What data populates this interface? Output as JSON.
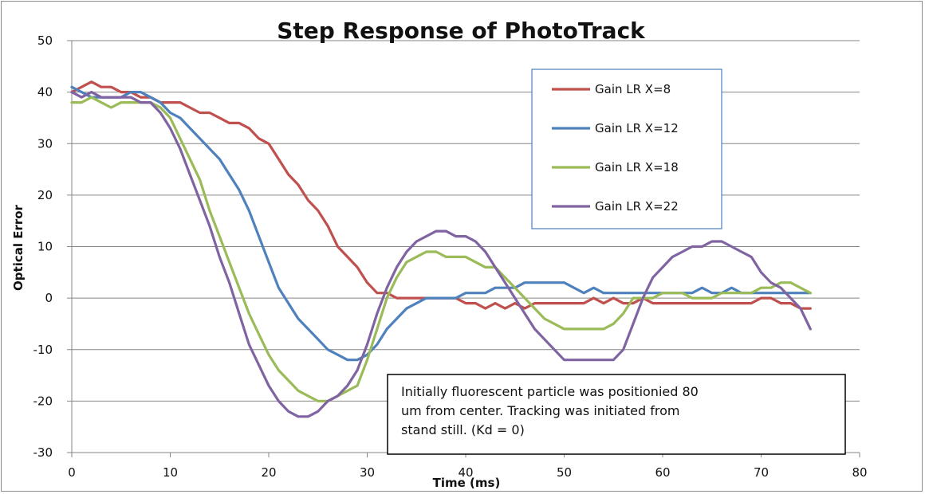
{
  "chart_data": {
    "type": "line",
    "title": "Step Response of PhotoTrack",
    "xlabel": "Time (ms)",
    "ylabel": "Optical Error",
    "xlim": [
      0,
      80
    ],
    "ylim": [
      -30,
      50
    ],
    "xticks": [
      "0",
      "10",
      "20",
      "30",
      "40",
      "50",
      "60",
      "70",
      "80"
    ],
    "yticks": [
      "50",
      "40",
      "30",
      "20",
      "10",
      "0",
      "-10",
      "-20",
      "-30"
    ],
    "grid": true,
    "legend_position": "top-right",
    "annotation": [
      "Initially fluorescent particle was positionied 80",
      "um from center.  Tracking was initiated from",
      "stand still.  (Kd = 0)"
    ],
    "series": [
      {
        "name": "Gain LR X=8",
        "color": "#c0504d",
        "x": [
          0,
          1,
          2,
          3,
          4,
          5,
          6,
          7,
          8,
          9,
          10,
          11,
          12,
          13,
          14,
          15,
          16,
          17,
          18,
          19,
          20,
          21,
          22,
          23,
          24,
          25,
          26,
          27,
          28,
          29,
          30,
          31,
          32,
          33,
          34,
          35,
          36,
          37,
          38,
          39,
          40,
          41,
          42,
          43,
          44,
          45,
          46,
          47,
          48,
          49,
          50,
          51,
          52,
          53,
          54,
          55,
          56,
          57,
          58,
          59,
          60,
          61,
          62,
          63,
          64,
          65,
          66,
          67,
          68,
          69,
          70,
          71,
          72,
          73,
          74,
          75
        ],
        "values": [
          40,
          41,
          42,
          41,
          41,
          40,
          40,
          39,
          39,
          38,
          38,
          38,
          37,
          36,
          36,
          35,
          34,
          34,
          33,
          31,
          30,
          27,
          24,
          22,
          19,
          17,
          14,
          10,
          8,
          6,
          3,
          1,
          1,
          0,
          0,
          0,
          0,
          0,
          0,
          0,
          -1,
          -1,
          -2,
          -1,
          -2,
          -1,
          -2,
          -1,
          -1,
          -1,
          -1,
          -1,
          -1,
          0,
          -1,
          0,
          -1,
          -1,
          0,
          -1,
          -1,
          -1,
          -1,
          -1,
          -1,
          -1,
          -1,
          -1,
          -1,
          -1,
          0,
          0,
          -1,
          -1,
          -2,
          -2
        ]
      },
      {
        "name": "Gain LR X=12",
        "color": "#4f81bd",
        "x": [
          0,
          1,
          2,
          3,
          4,
          5,
          6,
          7,
          8,
          9,
          10,
          11,
          12,
          13,
          14,
          15,
          16,
          17,
          18,
          19,
          20,
          21,
          22,
          23,
          24,
          25,
          26,
          27,
          28,
          29,
          30,
          31,
          32,
          33,
          34,
          35,
          36,
          37,
          38,
          39,
          40,
          41,
          42,
          43,
          44,
          45,
          46,
          47,
          48,
          49,
          50,
          51,
          52,
          53,
          54,
          55,
          56,
          57,
          58,
          59,
          60,
          61,
          62,
          63,
          64,
          65,
          66,
          67,
          68,
          69,
          70,
          71,
          72,
          73,
          74,
          75
        ],
        "values": [
          41,
          40,
          39,
          39,
          39,
          39,
          40,
          40,
          39,
          38,
          36,
          35,
          33,
          31,
          29,
          27,
          24,
          21,
          17,
          12,
          7,
          2,
          -1,
          -4,
          -6,
          -8,
          -10,
          -11,
          -12,
          -12,
          -11,
          -9,
          -6,
          -4,
          -2,
          -1,
          0,
          0,
          0,
          0,
          1,
          1,
          1,
          2,
          2,
          2,
          3,
          3,
          3,
          3,
          3,
          2,
          1,
          2,
          1,
          1,
          1,
          1,
          1,
          1,
          1,
          1,
          1,
          1,
          2,
          1,
          1,
          2,
          1,
          1,
          1,
          1,
          1,
          1,
          1,
          1
        ]
      },
      {
        "name": "Gain LR X=18",
        "color": "#9bbb59",
        "x": [
          0,
          1,
          2,
          3,
          4,
          5,
          6,
          7,
          8,
          9,
          10,
          11,
          12,
          13,
          14,
          15,
          16,
          17,
          18,
          19,
          20,
          21,
          22,
          23,
          24,
          25,
          26,
          27,
          28,
          29,
          30,
          31,
          32,
          33,
          34,
          35,
          36,
          37,
          38,
          39,
          40,
          41,
          42,
          43,
          44,
          45,
          46,
          47,
          48,
          49,
          50,
          51,
          52,
          53,
          54,
          55,
          56,
          57,
          58,
          59,
          60,
          61,
          62,
          63,
          64,
          65,
          66,
          67,
          68,
          69,
          70,
          71,
          72,
          73,
          74,
          75
        ],
        "values": [
          38,
          38,
          39,
          38,
          37,
          38,
          38,
          38,
          38,
          37,
          35,
          31,
          27,
          23,
          17,
          12,
          7,
          2,
          -3,
          -7,
          -11,
          -14,
          -16,
          -18,
          -19,
          -20,
          -20,
          -19,
          -18,
          -17,
          -12,
          -6,
          0,
          4,
          7,
          8,
          9,
          9,
          8,
          8,
          8,
          7,
          6,
          6,
          4,
          2,
          0,
          -2,
          -4,
          -5,
          -6,
          -6,
          -6,
          -6,
          -6,
          -5,
          -3,
          0,
          0,
          0,
          1,
          1,
          1,
          0,
          0,
          0,
          1,
          1,
          1,
          1,
          2,
          2,
          3,
          3,
          2,
          1
        ]
      },
      {
        "name": "Gain LR X=22",
        "color": "#8064a2",
        "x": [
          0,
          1,
          2,
          3,
          4,
          5,
          6,
          7,
          8,
          9,
          10,
          11,
          12,
          13,
          14,
          15,
          16,
          17,
          18,
          19,
          20,
          21,
          22,
          23,
          24,
          25,
          26,
          27,
          28,
          29,
          30,
          31,
          32,
          33,
          34,
          35,
          36,
          37,
          38,
          39,
          40,
          41,
          42,
          43,
          44,
          45,
          46,
          47,
          48,
          49,
          50,
          51,
          52,
          53,
          54,
          55,
          56,
          57,
          58,
          59,
          60,
          61,
          62,
          63,
          64,
          65,
          66,
          67,
          68,
          69,
          70,
          71,
          72,
          73,
          74,
          75
        ],
        "values": [
          40,
          39,
          40,
          39,
          39,
          39,
          39,
          38,
          38,
          36,
          33,
          29,
          24,
          19,
          14,
          8,
          3,
          -3,
          -9,
          -13,
          -17,
          -20,
          -22,
          -23,
          -23,
          -22,
          -20,
          -19,
          -17,
          -14,
          -9,
          -3,
          2,
          6,
          9,
          11,
          12,
          13,
          13,
          12,
          12,
          11,
          9,
          6,
          3,
          0,
          -3,
          -6,
          -8,
          -10,
          -12,
          -12,
          -12,
          -12,
          -12,
          -12,
          -10,
          -5,
          0,
          4,
          6,
          8,
          9,
          10,
          10,
          11,
          11,
          10,
          9,
          8,
          5,
          3,
          2,
          0,
          -2,
          -6
        ]
      }
    ]
  }
}
